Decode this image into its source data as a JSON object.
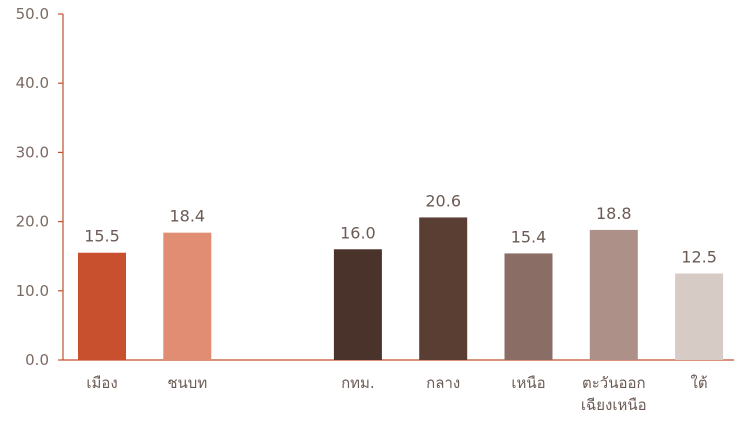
{
  "chart_data": {
    "type": "bar",
    "title": "",
    "xlabel": "",
    "ylabel": "",
    "ylim": [
      0,
      50
    ],
    "yticks": [
      "0.0",
      "10.0",
      "20.0",
      "30.0",
      "40.0",
      "50.0"
    ],
    "grid": false,
    "legend": "none",
    "axis_color": "#c0502e",
    "categories": [
      {
        "label": [
          "เมือง"
        ],
        "value": 15.5,
        "value_label": "15.5",
        "slot": 0,
        "color": "#c8502e"
      },
      {
        "label": [
          "ชนบท"
        ],
        "value": 18.4,
        "value_label": "18.4",
        "slot": 1,
        "color": "#e08d73"
      },
      {
        "label": [
          "กทม."
        ],
        "value": 16.0,
        "value_label": "16.0",
        "slot": 3,
        "color": "#4a332b"
      },
      {
        "label": [
          "กลาง"
        ],
        "value": 20.6,
        "value_label": "20.6",
        "slot": 4,
        "color": "#5a3d33"
      },
      {
        "label": [
          "เหนือ"
        ],
        "value": 15.4,
        "value_label": "15.4",
        "slot": 5,
        "color": "#8a6e65"
      },
      {
        "label": [
          "ตะวันออก",
          "เฉียงเหนือ"
        ],
        "value": 18.8,
        "value_label": "18.8",
        "slot": 6,
        "color": "#ad9189"
      },
      {
        "label": [
          "ใต้"
        ],
        "value": 12.5,
        "value_label": "12.5",
        "slot": 7,
        "color": "#d6ccc5"
      }
    ]
  }
}
